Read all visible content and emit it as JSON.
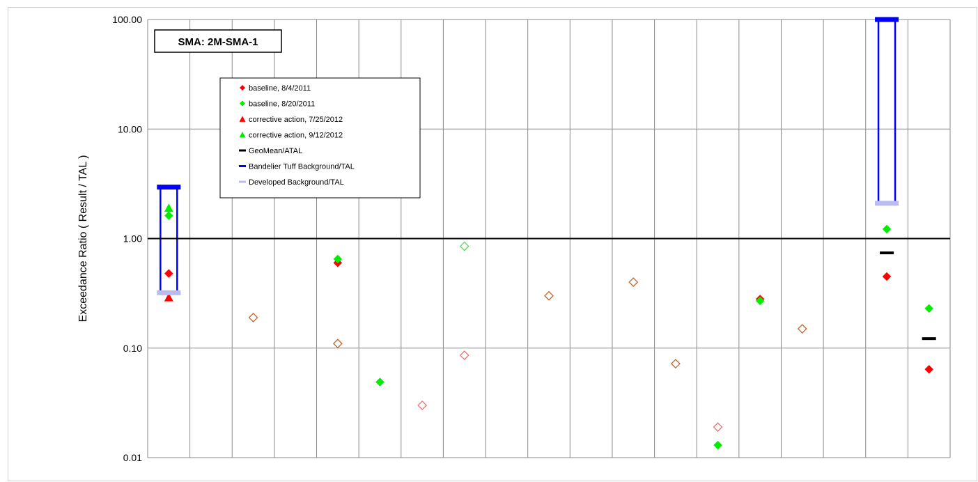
{
  "chart_data": {
    "type": "scatter",
    "title": "SMA: 2M-SMA-1",
    "ylabel": "Exceedance Ratio  ( Result / TAL )",
    "xlabel": "",
    "y_scale": "log",
    "ylim": [
      0.01,
      100
    ],
    "y_ticks": [
      "0.01",
      "0.10",
      "1.00",
      "10.00",
      "100.00"
    ],
    "x_categories": 19,
    "grid": "vertical and horizontal",
    "legend_position": "top-left",
    "reference_line": 1.0,
    "colors": {
      "baseline_2011_08_04": "#ff0000",
      "baseline_2011_08_20": "#00ee00",
      "corrective_2012_07_25": "#ff0000",
      "corrective_2012_09_12": "#00ee00",
      "geomean": "#000000",
      "bandelier": "#0000ff",
      "developed": "#b8bcf0",
      "nondetect_brown": "#c0622a",
      "nondetect_red": "#f07070",
      "nondetect_green": "#55dd55"
    },
    "legend": [
      {
        "key": "s1",
        "label": "baseline, 8/4/2011",
        "marker": "diamond",
        "color": "#ff0000"
      },
      {
        "key": "s2",
        "label": "baseline, 8/20/2011",
        "marker": "diamond",
        "color": "#00ee00"
      },
      {
        "key": "s3",
        "label": "corrective action, 7/25/2012",
        "marker": "triangle",
        "color": "#ff0000"
      },
      {
        "key": "s4",
        "label": "corrective action, 9/12/2012",
        "marker": "triangle",
        "color": "#00ee00"
      },
      {
        "key": "s5",
        "label": "GeoMean/ATAL",
        "marker": "dash",
        "color": "#000000"
      },
      {
        "key": "s6",
        "label": "Bandelier Tuff Background/TAL",
        "marker": "dash",
        "color": "#0000ff"
      },
      {
        "key": "s7",
        "label": "Developed Background/TAL",
        "marker": "dash",
        "color": "#b8bcf0"
      }
    ],
    "series": [
      {
        "key": "s1",
        "points": [
          {
            "x": 1,
            "y": 0.48
          },
          {
            "x": 5,
            "y": 0.6
          },
          {
            "x": 15,
            "y": 0.28
          },
          {
            "x": 18,
            "y": 0.45
          },
          {
            "x": 19,
            "y": 0.064
          }
        ]
      },
      {
        "key": "s2",
        "points": [
          {
            "x": 1,
            "y": 1.62
          },
          {
            "x": 5,
            "y": 0.65
          },
          {
            "x": 6,
            "y": 0.049
          },
          {
            "x": 14,
            "y": 0.013
          },
          {
            "x": 15,
            "y": 0.27
          },
          {
            "x": 18,
            "y": 1.22
          },
          {
            "x": 19,
            "y": 0.23
          }
        ]
      },
      {
        "key": "s3",
        "points": [
          {
            "x": 1,
            "y": 0.29
          }
        ]
      },
      {
        "key": "s4",
        "points": [
          {
            "x": 1,
            "y": 1.9
          }
        ]
      },
      {
        "key": "s5",
        "points": [
          {
            "x": 18,
            "y": 0.74
          },
          {
            "x": 19,
            "y": 0.122
          }
        ]
      },
      {
        "key": "s6",
        "points": [
          {
            "x": 1,
            "y": 2.95
          },
          {
            "x": 18,
            "y": 100
          }
        ]
      },
      {
        "key": "s7",
        "points": [
          {
            "x": 1,
            "y": 0.32
          },
          {
            "x": 18,
            "y": 2.1
          }
        ]
      }
    ],
    "nondetects": [
      {
        "x": 3,
        "y": 0.19,
        "color": "#c0622a"
      },
      {
        "x": 5,
        "y": 0.11,
        "color": "#c0622a"
      },
      {
        "x": 7,
        "y": 0.03,
        "color": "#f07070"
      },
      {
        "x": 8,
        "y": 0.85,
        "color": "#55dd55"
      },
      {
        "x": 8,
        "y": 0.086,
        "color": "#f07070"
      },
      {
        "x": 10,
        "y": 0.3,
        "color": "#c0622a"
      },
      {
        "x": 12,
        "y": 0.4,
        "color": "#c0622a"
      },
      {
        "x": 13,
        "y": 0.072,
        "color": "#c0622a"
      },
      {
        "x": 14,
        "y": 0.019,
        "color": "#f07070"
      },
      {
        "x": 16,
        "y": 0.15,
        "color": "#c0622a"
      }
    ],
    "background_ranges": [
      {
        "x": 1,
        "low": 0.32,
        "high": 2.95
      },
      {
        "x": 18,
        "low": 2.1,
        "high": 100
      }
    ]
  }
}
